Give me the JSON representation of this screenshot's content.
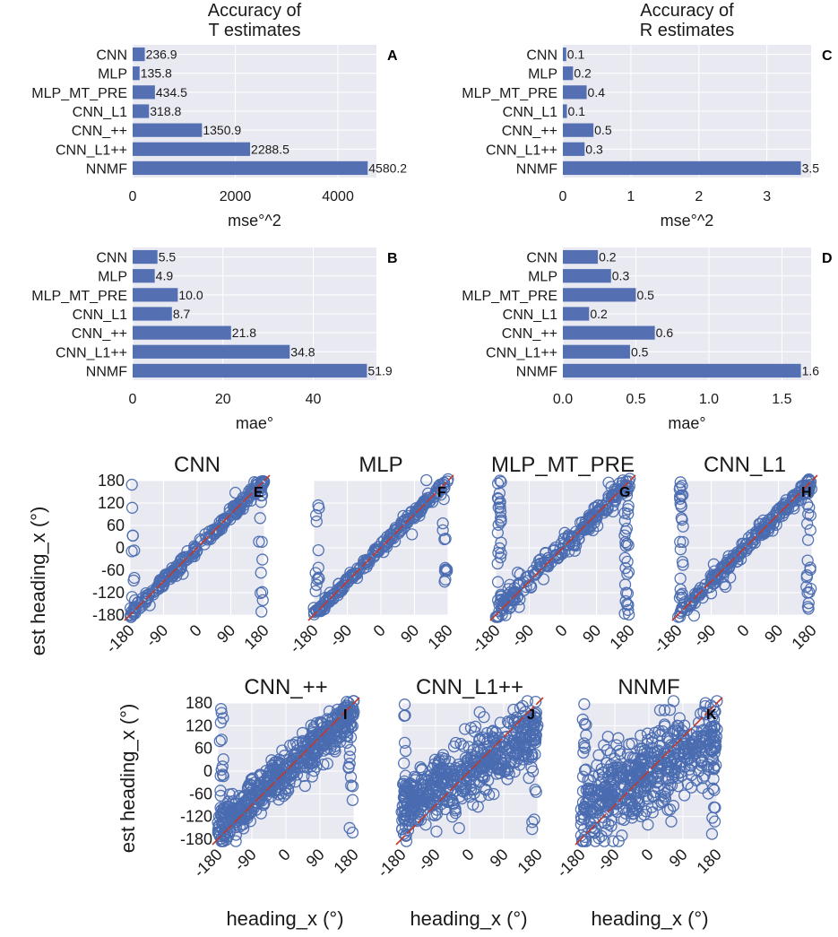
{
  "chart_data": [
    {
      "id": "A",
      "type": "bar",
      "orientation": "horizontal",
      "title": "Accuracy of T estimates",
      "title_lines": [
        "Accuracy of",
        "T estimates"
      ],
      "panel_label": "A",
      "categories": [
        "CNN",
        "MLP",
        "MLP_MT_PRE",
        "CNN_L1",
        "CNN_++",
        "CNN_L1++",
        "NNMF"
      ],
      "values": [
        236.9,
        135.8,
        434.5,
        318.8,
        1350.9,
        2288.5,
        4580.2
      ],
      "labels": [
        "236.9",
        "135.8",
        "434.5",
        "318.8",
        "1350.9",
        "2288.5",
        "4580.2"
      ],
      "xlabel": "mse°^2",
      "xlim": [
        0,
        4750
      ],
      "xticks": [
        0,
        2000,
        4000
      ],
      "xtick_labels": [
        "0",
        "2000",
        "4000"
      ]
    },
    {
      "id": "B",
      "type": "bar",
      "orientation": "horizontal",
      "title": "",
      "title_lines": [],
      "panel_label": "B",
      "categories": [
        "CNN",
        "MLP",
        "MLP_MT_PRE",
        "CNN_L1",
        "CNN_++",
        "CNN_L1++",
        "NNMF"
      ],
      "values": [
        5.5,
        4.9,
        10.0,
        8.7,
        21.8,
        34.8,
        51.9
      ],
      "labels": [
        "5.5",
        "4.9",
        "10.0",
        "8.7",
        "21.8",
        "34.8",
        "51.9"
      ],
      "xlabel": "mae°",
      "xlim": [
        0,
        54
      ],
      "xticks": [
        0,
        20,
        40
      ],
      "xtick_labels": [
        "0",
        "20",
        "40"
      ]
    },
    {
      "id": "C",
      "type": "bar",
      "orientation": "horizontal",
      "title": "Accuracy of R estimates",
      "title_lines": [
        "Accuracy of",
        "R estimates"
      ],
      "panel_label": "C",
      "categories": [
        "CNN",
        "MLP",
        "MLP_MT_PRE",
        "CNN_L1",
        "CNN_++",
        "CNN_L1++",
        "NNMF"
      ],
      "values": [
        0.05,
        0.15,
        0.35,
        0.06,
        0.45,
        0.32,
        3.5
      ],
      "labels": [
        "0.1",
        "0.2",
        "0.4",
        "0.1",
        "0.5",
        "0.3",
        "3.5"
      ],
      "xlabel": "mse°^2",
      "xlim": [
        0,
        3.65
      ],
      "xticks": [
        0,
        1,
        2,
        3
      ],
      "xtick_labels": [
        "0",
        "1",
        "2",
        "3"
      ]
    },
    {
      "id": "D",
      "type": "bar",
      "orientation": "horizontal",
      "title": "",
      "title_lines": [],
      "panel_label": "D",
      "categories": [
        "CNN",
        "MLP",
        "MLP_MT_PRE",
        "CNN_L1",
        "CNN_++",
        "CNN_L1++",
        "NNMF"
      ],
      "values": [
        0.24,
        0.33,
        0.5,
        0.18,
        0.63,
        0.46,
        1.63
      ],
      "labels": [
        "0.2",
        "0.3",
        "0.5",
        "0.2",
        "0.6",
        "0.5",
        "1.6"
      ],
      "xlabel": "mae°",
      "xlim": [
        0,
        1.7
      ],
      "xticks": [
        0,
        0.5,
        1.0,
        1.5
      ],
      "xtick_labels": [
        "0.0",
        "0.5",
        "1.0",
        "1.5"
      ]
    },
    {
      "id": "E",
      "type": "scatter",
      "title": "CNN",
      "panel_label": "E",
      "spread": 8,
      "outliers": 34,
      "shape": "tight",
      "xlim": [
        -180,
        180
      ],
      "ylim": [
        -180,
        180
      ]
    },
    {
      "id": "F",
      "type": "scatter",
      "title": "MLP",
      "panel_label": "F",
      "spread": 7,
      "outliers": 28,
      "shape": "tight",
      "xlim": [
        -180,
        180
      ],
      "ylim": [
        -180,
        180
      ]
    },
    {
      "id": "G",
      "type": "scatter",
      "title": "MLP_MT_PRE",
      "panel_label": "G",
      "spread": 14,
      "outliers": 70,
      "shape": "tight",
      "xlim": [
        -180,
        180
      ],
      "ylim": [
        -180,
        180
      ]
    },
    {
      "id": "H",
      "type": "scatter",
      "title": "CNN_L1",
      "panel_label": "H",
      "spread": 10,
      "outliers": 60,
      "shape": "tight",
      "xlim": [
        -180,
        180
      ],
      "ylim": [
        -180,
        180
      ]
    },
    {
      "id": "I",
      "type": "scatter",
      "title": "CNN_++",
      "panel_label": "I",
      "spread": 28,
      "outliers": 40,
      "shape": "wide",
      "xlim": [
        -180,
        180
      ],
      "ylim": [
        -180,
        180
      ]
    },
    {
      "id": "J",
      "type": "scatter",
      "title": "CNN_L1++",
      "panel_label": "J",
      "spread": 45,
      "outliers": 40,
      "shape": "flat",
      "xlim": [
        -180,
        180
      ],
      "ylim": [
        -180,
        180
      ]
    },
    {
      "id": "K",
      "type": "scatter",
      "title": "NNMF",
      "panel_label": "K",
      "spread": 55,
      "outliers": 40,
      "shape": "flat",
      "xlim": [
        -180,
        180
      ],
      "ylim": [
        -180,
        180
      ]
    }
  ],
  "scatter_axes": {
    "xticks": [
      -180,
      -90,
      0,
      90,
      180
    ],
    "xtick_labels": [
      "-180",
      "-90",
      "0",
      "90",
      "180"
    ],
    "yticks": [
      -180,
      -120,
      -60,
      0,
      60,
      120,
      180
    ],
    "ytick_labels": [
      "-180",
      "-120",
      "-60",
      "0",
      "60",
      "120",
      "180"
    ],
    "xlabel": "heading_x (°)",
    "ylabel": "est heading_x (°)"
  },
  "colors": {
    "bar": "#5470b3",
    "point": "#4a6bb0",
    "axes_bg": "#e9e9f2",
    "grid": "#ffffff",
    "diag": "#c0392b"
  }
}
